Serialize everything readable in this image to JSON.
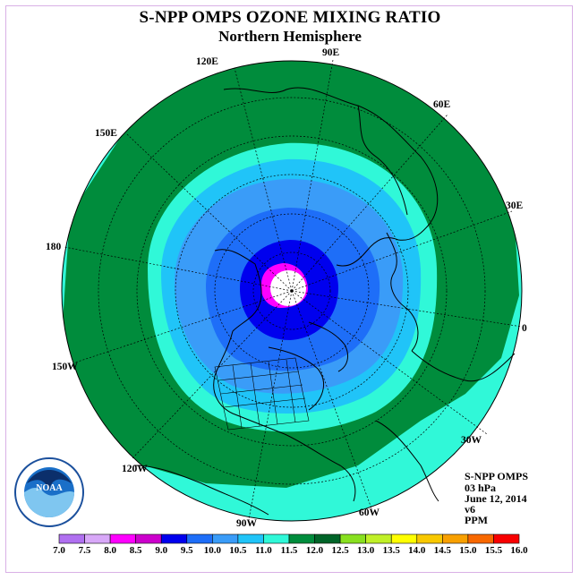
{
  "header": {
    "title": "S-NPP OMPS OZONE MIXING RATIO",
    "subtitle": "Northern Hemisphere"
  },
  "map_labels": {
    "lon_90e": "90E",
    "lon_60e": "60E",
    "lon_30e": "30E",
    "lon_0": "0",
    "lon_30w": "30W",
    "lon_60w": "60W",
    "lon_90w": "90W",
    "lon_120w": "120W",
    "lon_150w": "150W",
    "lon_180": "180",
    "lon_150e": "150E",
    "lon_120e": "120E"
  },
  "info": {
    "instrument": "S-NPP OMPS",
    "level": "03 hPa",
    "date": "June 12, 2014",
    "version": "v6",
    "units": "PPM"
  },
  "logo": {
    "text": "NOAA",
    "ring_text": "NATIONAL OCEANIC AND ATMOSPHERIC ADMINISTRATION · U.S. DEPARTMENT OF COMMERCE"
  },
  "colorbar": {
    "ticks": [
      "7.0",
      "7.5",
      "8.0",
      "8.5",
      "9.0",
      "9.5",
      "10.0",
      "10.5",
      "11.0",
      "11.5",
      "12.0",
      "12.5",
      "13.0",
      "13.5",
      "14.0",
      "14.5",
      "15.0",
      "15.5",
      "16.0"
    ],
    "colors": [
      "#b070f0",
      "#d8a8f8",
      "#ff00ff",
      "#cc00cc",
      "#0000ee",
      "#1e6ef8",
      "#3a9cf8",
      "#20c4f8",
      "#30f8d8",
      "#008c3c",
      "#006428",
      "#88e020",
      "#c0f028",
      "#ffff00",
      "#f8c800",
      "#f8a000",
      "#f86800",
      "#f80000",
      "#885030"
    ]
  }
}
